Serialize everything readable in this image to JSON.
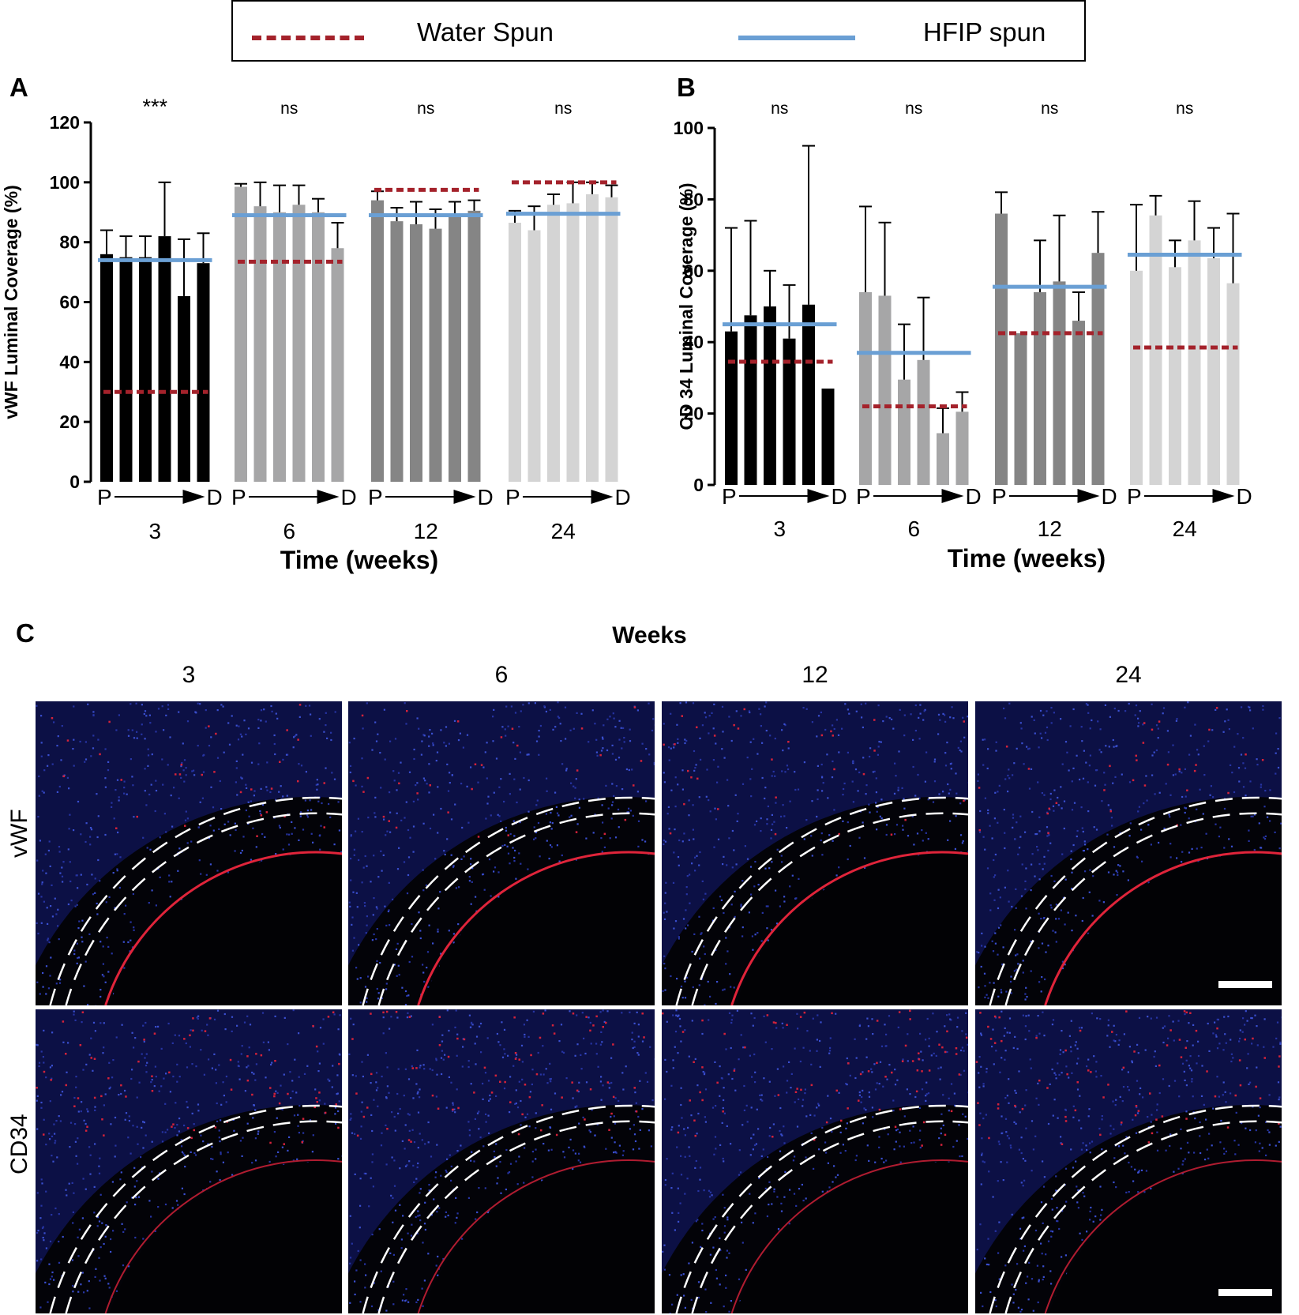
{
  "legend": {
    "water_label": "Water Spun",
    "hfip_label": "HFIP spun",
    "water_color": "#a4222b",
    "hfip_color": "#6a9fd4"
  },
  "panel_letters": {
    "a": "A",
    "b": "B",
    "c": "C"
  },
  "chart_data": [
    {
      "type": "bar",
      "panel": "A",
      "ylabel": "vWF Luminal Coverage (%)",
      "xlabel": "Time (weeks)",
      "ylim": [
        0,
        120
      ],
      "yticks": [
        0,
        20,
        40,
        60,
        80,
        100,
        120
      ],
      "groups": [
        {
          "week": "3",
          "sig": "***",
          "color": "#000000",
          "values": [
            76,
            75,
            75,
            82,
            62,
            73
          ],
          "errors": [
            84,
            82,
            82,
            100,
            81,
            83
          ],
          "water_spun": 30,
          "hfip_spun": 74
        },
        {
          "week": "6",
          "sig": "ns",
          "color": "#a6a6a7",
          "values": [
            98.5,
            92,
            90,
            92.5,
            90,
            78
          ],
          "errors": [
            99.5,
            100,
            99,
            99,
            94.5,
            86.5
          ],
          "water_spun": 73.5,
          "hfip_spun": 89
        },
        {
          "week": "12",
          "sig": "ns",
          "color": "#858585",
          "values": [
            94,
            87,
            86,
            84.5,
            89,
            90.5
          ],
          "errors": [
            97,
            91.5,
            93.5,
            91,
            93.5,
            94
          ],
          "water_spun": 97.5,
          "hfip_spun": 89
        },
        {
          "week": "24",
          "sig": "ns",
          "color": "#d4d4d4",
          "values": [
            86.5,
            84,
            92.5,
            93,
            96,
            95
          ],
          "errors": [
            90.5,
            92,
            96,
            100,
            100,
            99
          ],
          "water_spun": 100,
          "hfip_spun": 89.5
        }
      ],
      "axis_marks": {
        "proximal": "P",
        "distal": "D"
      }
    },
    {
      "type": "bar",
      "panel": "B",
      "ylabel": "CD 34 Luminal Coverage (%)",
      "xlabel": "Time (weeks)",
      "ylim": [
        0,
        100
      ],
      "yticks": [
        0,
        20,
        40,
        60,
        80,
        100
      ],
      "groups": [
        {
          "week": "3",
          "sig": "ns",
          "color": "#000000",
          "values": [
            43,
            47.5,
            50,
            41,
            50.5,
            27
          ],
          "errors": [
            72,
            74,
            60,
            56,
            95,
            27
          ],
          "water_spun": 34.5,
          "hfip_spun": 45
        },
        {
          "week": "6",
          "sig": "ns",
          "color": "#a6a6a7",
          "values": [
            54,
            53,
            29.5,
            35,
            14.5,
            20.5
          ],
          "errors": [
            78,
            73.5,
            45,
            52.5,
            21.5,
            26
          ],
          "water_spun": 22,
          "hfip_spun": 37
        },
        {
          "week": "12",
          "sig": "ns",
          "color": "#858585",
          "values": [
            76,
            42.5,
            54,
            57,
            46,
            65
          ],
          "errors": [
            82,
            42.5,
            68.5,
            75.5,
            54,
            76.5
          ],
          "water_spun": 42.5,
          "hfip_spun": 55.5
        },
        {
          "week": "24",
          "sig": "ns",
          "color": "#d4d4d4",
          "values": [
            60,
            75.5,
            61,
            68.5,
            63.5,
            56.5
          ],
          "errors": [
            78.5,
            81,
            68.5,
            79.5,
            72,
            76
          ],
          "water_spun": 38.5,
          "hfip_spun": 64.5
        }
      ],
      "axis_marks": {
        "proximal": "P",
        "distal": "D"
      }
    }
  ],
  "panel_c": {
    "title": "Weeks",
    "columns": [
      "3",
      "6",
      "12",
      "24"
    ],
    "rows": [
      "vWF",
      "CD34"
    ]
  }
}
